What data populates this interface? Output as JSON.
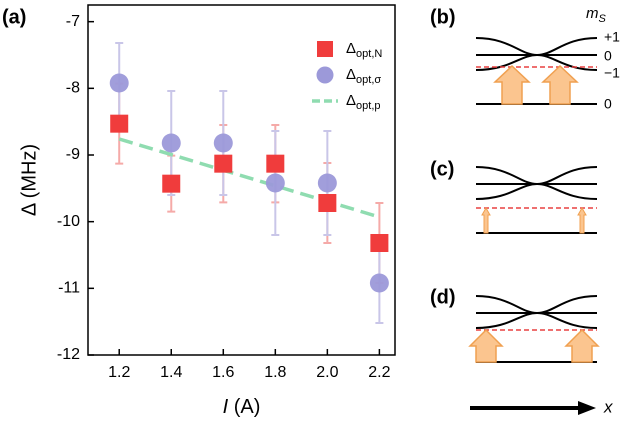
{
  "chart_data": {
    "type": "scatter",
    "panel_label": "(a)",
    "x_label": "I (A)",
    "y_label": "Δ (MHz)",
    "x": [
      1.2,
      1.4,
      1.6,
      1.8,
      2.0,
      2.2
    ],
    "xlim": [
      1.08,
      2.26
    ],
    "xticks": [
      1.2,
      1.4,
      1.6,
      1.8,
      {
        "value": 2.0,
        "label": "2.0"
      },
      2.2
    ],
    "ylim": [
      -12,
      -6.75
    ],
    "yticks": [
      -12,
      -11,
      -10,
      -9,
      -8,
      -7
    ],
    "series": [
      {
        "name": "Δopt,N",
        "marker": "square",
        "color": "#f03c3c",
        "error_color": "#f5aaa8",
        "values": [
          -8.53,
          -9.43,
          -9.13,
          -9.13,
          -9.72,
          -10.32
        ],
        "errors": [
          0.6,
          0.42,
          0.58,
          0.58,
          0.6,
          0.6
        ]
      },
      {
        "name": "Δopt,σ",
        "marker": "circle",
        "color": "#9c99d9",
        "error_color": "#c9c6e8",
        "values": [
          -7.92,
          -8.82,
          -8.82,
          -9.42,
          -9.42,
          -10.92
        ],
        "errors": [
          0.6,
          0.78,
          0.78,
          0.78,
          0.78,
          0.6
        ]
      },
      {
        "name": "Δopt,p",
        "marker": "dashed-line",
        "color": "#8fdcb0",
        "x": [
          1.2,
          2.2
        ],
        "values": [
          -8.76,
          -9.93
        ]
      }
    ]
  },
  "diagram": {
    "panels": [
      {
        "label": "(b)"
      },
      {
        "label": "(c)"
      },
      {
        "label": "(d)"
      }
    ],
    "ms_label": "mS",
    "levels": [
      "+1",
      "0",
      "−1",
      "0"
    ],
    "x_axis": "x"
  }
}
